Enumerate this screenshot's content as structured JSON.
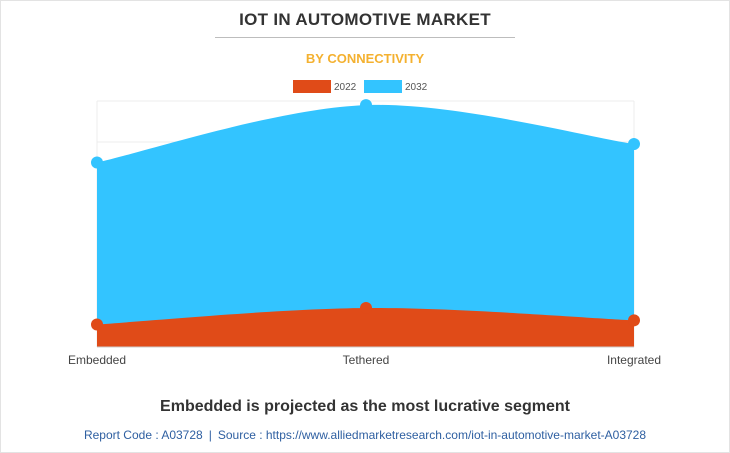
{
  "header": {
    "title": "IOT IN AUTOMOTIVE MARKET",
    "subtitle": "BY CONNECTIVITY"
  },
  "chart_data": {
    "type": "area",
    "categories": [
      "Embedded",
      "Tethered",
      "Integrated"
    ],
    "series": [
      {
        "name": "2022",
        "color": "#e04b18",
        "values": [
          5.5,
          9.5,
          6.5
        ]
      },
      {
        "name": "2032",
        "color": "#33c4ff",
        "values": [
          45,
          59,
          49.5
        ]
      }
    ],
    "ylim": [
      0,
      60
    ],
    "grid": true,
    "legend": "top-center",
    "title": "IOT IN AUTOMOTIVE MARKET",
    "subtitle": "BY CONNECTIVITY",
    "xlabel": "",
    "ylabel": ""
  },
  "caption": "Embedded is projected as the most lucrative segment",
  "footer": {
    "report_code": "Report Code : A03728",
    "separator": "|",
    "source": "Source : https://www.alliedmarketresearch.com/iot-in-automotive-market-A03728"
  }
}
